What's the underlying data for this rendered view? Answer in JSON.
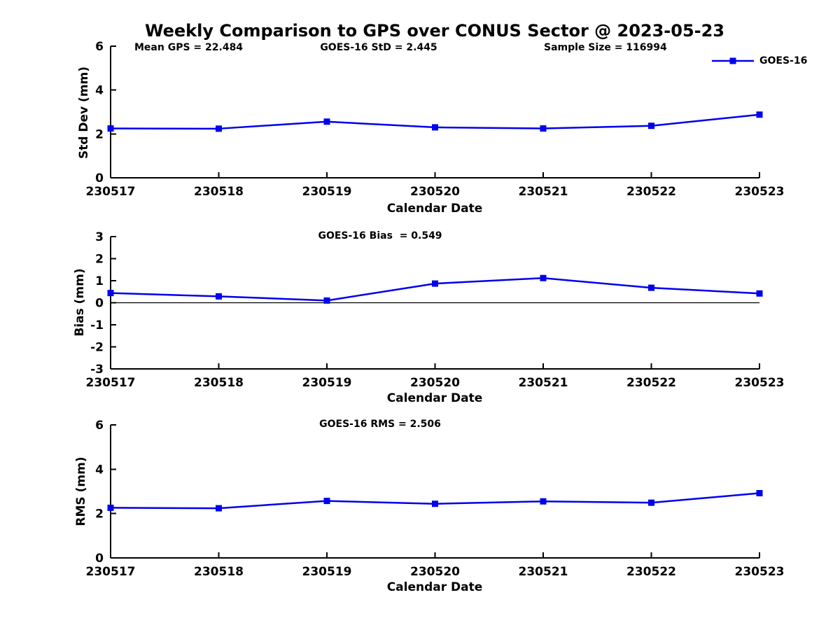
{
  "title": "Weekly Comparison to GPS over CONUS Sector @ 2023-05-23",
  "colors": {
    "line": "#0000EE",
    "axis": "#000000",
    "text": "#000000"
  },
  "chart_data": [
    {
      "id": "stddev",
      "type": "line",
      "title": "",
      "annotations": [
        "Mean GPS = 22.484",
        "GOES-16 StD = 2.445",
        "Sample Size = 116994"
      ],
      "legend": {
        "label": "GOES-16",
        "position": "top-right-outside"
      },
      "categories": [
        "230517",
        "230518",
        "230519",
        "230520",
        "230521",
        "230522",
        "230523"
      ],
      "series": [
        {
          "name": "GOES-16",
          "color": "#0000EE",
          "marker": "square",
          "values": [
            2.25,
            2.24,
            2.56,
            2.3,
            2.25,
            2.37,
            2.88
          ]
        }
      ],
      "xlabel": "Calendar Date",
      "ylabel": "Std Dev (mm)",
      "ylim": [
        0,
        6
      ],
      "yticks": [
        0,
        2,
        4,
        6
      ],
      "grid": false,
      "zero_line": false
    },
    {
      "id": "bias",
      "type": "line",
      "title": "GOES-16 Bias  = 0.549",
      "categories": [
        "230517",
        "230518",
        "230519",
        "230520",
        "230521",
        "230522",
        "230523"
      ],
      "series": [
        {
          "name": "GOES-16",
          "color": "#0000EE",
          "marker": "square",
          "values": [
            0.44,
            0.29,
            0.1,
            0.87,
            1.12,
            0.68,
            0.42
          ]
        }
      ],
      "xlabel": "Calendar Date",
      "ylabel": "Bias (mm)",
      "ylim": [
        -3,
        3
      ],
      "yticks": [
        3,
        2,
        1,
        0,
        -1,
        -2,
        -3
      ],
      "grid": false,
      "zero_line": true
    },
    {
      "id": "rms",
      "type": "line",
      "title": "GOES-16 RMS = 2.506",
      "categories": [
        "230517",
        "230518",
        "230519",
        "230520",
        "230521",
        "230522",
        "230523"
      ],
      "series": [
        {
          "name": "GOES-16",
          "color": "#0000EE",
          "marker": "square",
          "values": [
            2.26,
            2.24,
            2.57,
            2.44,
            2.55,
            2.49,
            2.92
          ]
        }
      ],
      "xlabel": "Calendar Date",
      "ylabel": "RMS (mm)",
      "ylim": [
        0,
        6
      ],
      "yticks": [
        0,
        2,
        4,
        6
      ],
      "grid": false,
      "zero_line": false
    }
  ]
}
